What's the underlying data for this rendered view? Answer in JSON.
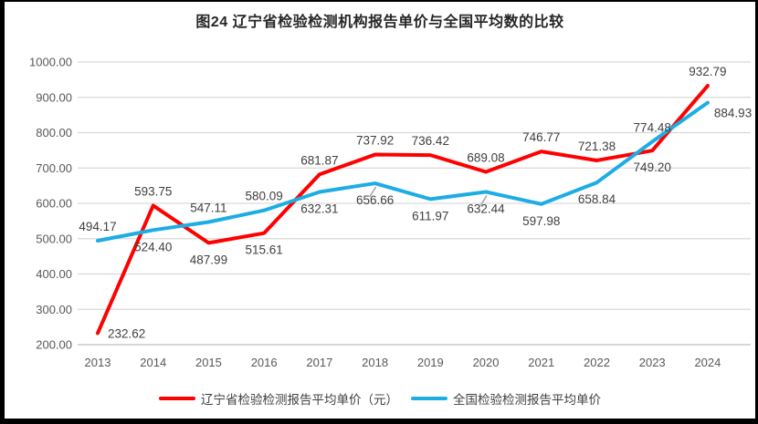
{
  "title": "图24 辽宁省检验检测机构报告单价与全国平均数的比较",
  "chart_data": {
    "type": "line",
    "categories": [
      "2013",
      "2014",
      "2015",
      "2016",
      "2017",
      "2018",
      "2019",
      "2020",
      "2021",
      "2022",
      "2023",
      "2024"
    ],
    "series": [
      {
        "name": "辽宁省检验检测报告平均单价（元）",
        "color": "#FE0000",
        "values": [
          232.62,
          593.75,
          487.99,
          515.61,
          681.87,
          737.92,
          736.42,
          689.08,
          746.77,
          721.38,
          749.2,
          932.79
        ],
        "label_pos": [
          "right",
          "above",
          "below",
          "below",
          "above",
          "above",
          "above",
          "above",
          "above",
          "above",
          "below",
          "above"
        ],
        "leader_indices": []
      },
      {
        "name": "全国检验检测报告平均单价",
        "color": "#1CADE4",
        "values": [
          494.17,
          524.4,
          547.11,
          580.09,
          632.31,
          656.66,
          611.97,
          632.44,
          597.98,
          658.84,
          774.48,
          884.93
        ],
        "label_pos": [
          "above",
          "below",
          "above",
          "above",
          "below",
          "below",
          "below",
          "below",
          "below",
          "below",
          "above",
          "below-right"
        ],
        "leader_indices": [
          5,
          7
        ]
      }
    ],
    "ylim": [
      200,
      1000
    ],
    "ytick_step": 100,
    "ytick_decimals": 2,
    "grid": "horizontal",
    "legend_position": "bottom",
    "grid_color": "#D9D9D9",
    "axis_color": "#BFBFBF",
    "leader_color": "#A6A6A6",
    "tick_color": "#595959",
    "label_color": "#404040"
  }
}
